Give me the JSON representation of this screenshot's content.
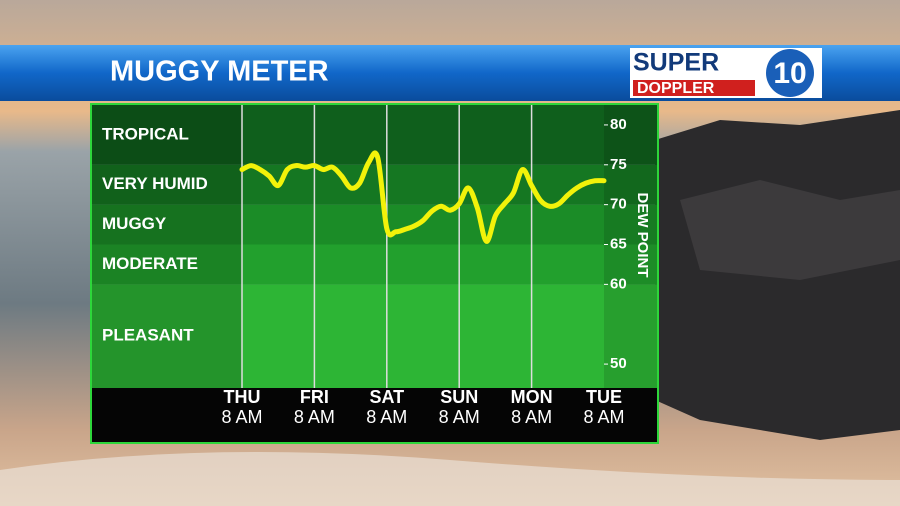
{
  "header": {
    "title": "MUGGY METER",
    "logo": {
      "top": "SUPER",
      "bottom": "DOPPLER",
      "number": "10"
    }
  },
  "chart_data": {
    "type": "line",
    "y_label": "DEW POINT",
    "categories": [
      "THU",
      null,
      null,
      null,
      null,
      null,
      null,
      null,
      "FRI",
      null,
      null,
      null,
      null,
      null,
      null,
      null,
      "SAT",
      null,
      null,
      null,
      null,
      null,
      null,
      null,
      "SUN",
      null,
      null,
      null,
      null,
      null,
      null,
      null,
      "MON",
      null,
      null,
      null,
      null,
      null,
      null,
      null,
      "TUE"
    ],
    "category_times": [
      "8 AM",
      null,
      null,
      null,
      null,
      null,
      null,
      null,
      "8 AM",
      null,
      null,
      null,
      null,
      null,
      null,
      null,
      "8 AM",
      null,
      null,
      null,
      null,
      null,
      null,
      null,
      "8 AM",
      null,
      null,
      null,
      null,
      null,
      null,
      null,
      "8 AM",
      null,
      null,
      null,
      null,
      null,
      null,
      null,
      "8 AM"
    ],
    "series": [
      {
        "name": "Dew point",
        "color": "#f2f20a",
        "values": [
          74.4,
          74.9,
          74.4,
          73.6,
          72.4,
          74.4,
          74.9,
          74.7,
          74.9,
          74.4,
          74.7,
          73.6,
          72.1,
          72.7,
          75.3,
          75.9,
          67.0,
          66.6,
          66.9,
          67.3,
          68.0,
          69.2,
          69.8,
          69.3,
          70.1,
          72.1,
          69.6,
          65.4,
          68.6,
          70.1,
          71.5,
          74.4,
          72.4,
          70.5,
          69.8,
          70.1,
          71.2,
          72.1,
          72.7,
          73.0,
          73.0
        ]
      }
    ],
    "ylim": [
      47,
      82.5
    ],
    "yticks": [
      50,
      60,
      65,
      70,
      75,
      80
    ],
    "bands": [
      {
        "label": "TROPICAL",
        "from": 75,
        "to": 82.5,
        "color": "#0f5f1c"
      },
      {
        "label": "VERY HUMID",
        "from": 70,
        "to": 75,
        "color": "#157722"
      },
      {
        "label": "MUGGY",
        "from": 65,
        "to": 70,
        "color": "#1b8c27"
      },
      {
        "label": "MODERATE",
        "from": 60,
        "to": 65,
        "color": "#22a02d"
      },
      {
        "label": "PLEASANT",
        "from": 47,
        "to": 60,
        "color": "#2db535"
      }
    ]
  }
}
